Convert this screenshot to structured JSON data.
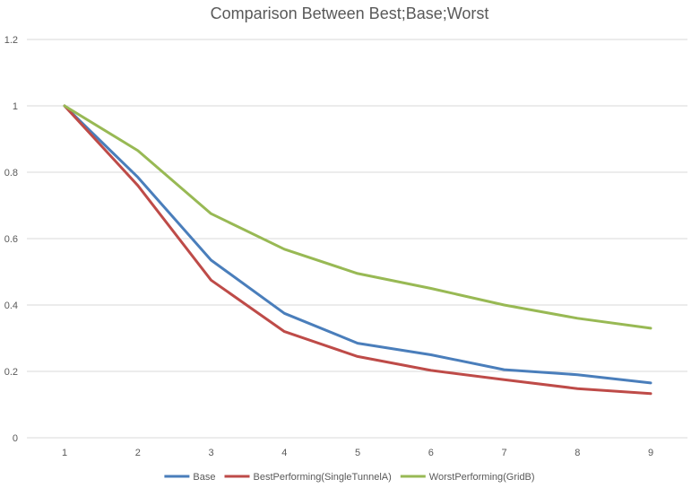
{
  "chart_data": {
    "type": "line",
    "title": "Comparison Between Best;Base;Worst",
    "xlabel": "",
    "ylabel": "",
    "x": [
      "1",
      "2",
      "3",
      "4",
      "5",
      "6",
      "7",
      "8",
      "9"
    ],
    "ylim": [
      0,
      1.2
    ],
    "yticks": [
      "0",
      "0.2",
      "0.4",
      "0.6",
      "0.8",
      "1",
      "1.2"
    ],
    "grid": true,
    "legend_position": "bottom",
    "series": [
      {
        "name": "Base",
        "color": "#4a7ebb",
        "values": [
          1.0,
          0.785,
          0.535,
          0.375,
          0.285,
          0.25,
          0.205,
          0.19,
          0.165
        ]
      },
      {
        "name": "BestPerforming(SingleTunnelA)",
        "color": "#be4b48",
        "values": [
          1.0,
          0.76,
          0.475,
          0.32,
          0.245,
          0.203,
          0.175,
          0.148,
          0.133
        ]
      },
      {
        "name": "WorstPerforming(GridB)",
        "color": "#98b954",
        "values": [
          1.0,
          0.865,
          0.675,
          0.568,
          0.495,
          0.45,
          0.4,
          0.36,
          0.33
        ]
      }
    ]
  }
}
